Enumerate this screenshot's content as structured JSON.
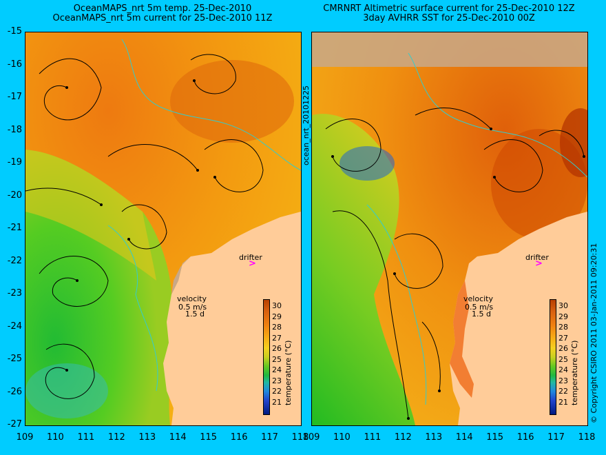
{
  "left_panel": {
    "title_line1": "OceanMAPS_nrt 5m temp. 25-Dec-2010",
    "title_line2": "OceanMAPS_nrt 5m current for 25-Dec-2010 11Z"
  },
  "right_panel": {
    "title_line1": "CMRNRT Altimetric surface current for 25-Dec-2010 12Z",
    "title_line2": "3day AVHRR SST for 25-Dec-2010 00Z"
  },
  "side_label": "ocean_nrt_20101225",
  "copyright": "© Copyright CSIRO 2011   03-Jan-2011 09:20:31",
  "latitudes": [
    "-15",
    "-16",
    "-17",
    "-18",
    "-19",
    "-20",
    "-21",
    "-22",
    "-23",
    "-24",
    "-25",
    "-26",
    "-27"
  ],
  "longitudes": [
    "109",
    "110",
    "111",
    "112",
    "113",
    "114",
    "115",
    "116",
    "117",
    "118"
  ],
  "colorbar": {
    "ticks": [
      "30",
      "29",
      "28",
      "27",
      "26",
      "25",
      "24",
      "23",
      "22",
      "21"
    ],
    "label": "temperature (°C)"
  },
  "velocity": {
    "title": "velocity",
    "speed": "0.5 m/s",
    "days": "1.5 d"
  },
  "drifter": {
    "label": "drifter",
    "symbol": ">"
  },
  "colors": {
    "background": "#00ccff",
    "land": "#ffcc99",
    "missing": "#c8a888",
    "drifter": "#ff00ff"
  }
}
